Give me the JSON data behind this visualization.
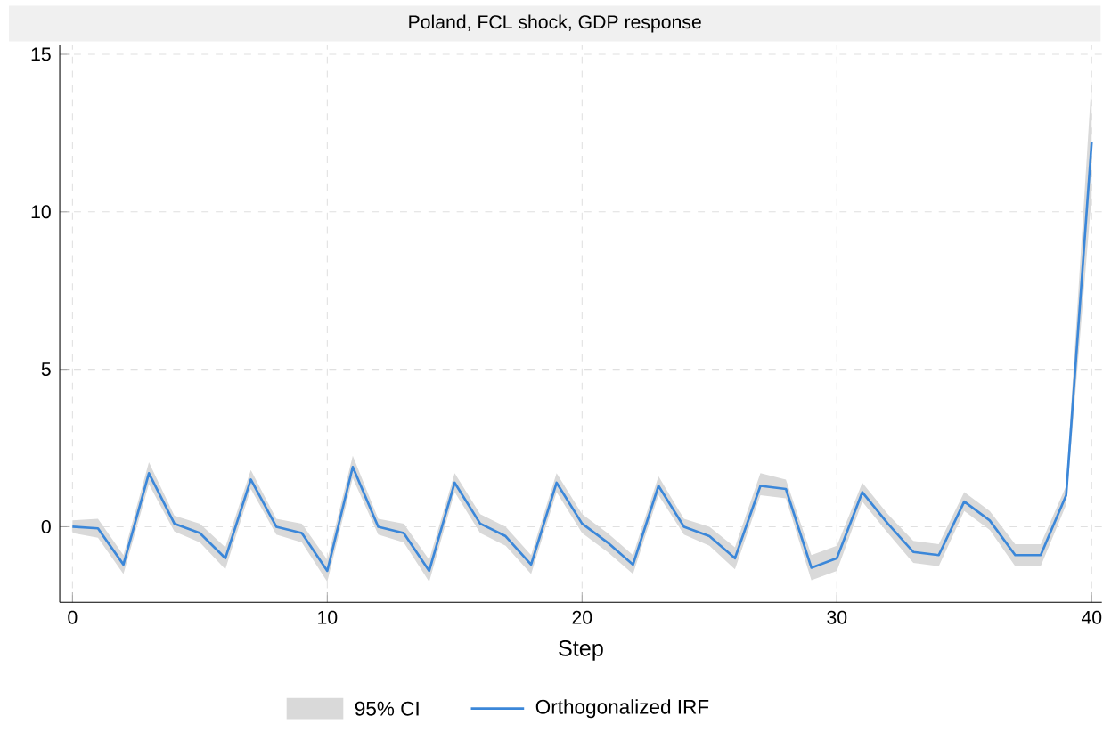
{
  "chart_data": {
    "type": "line",
    "title": "Poland, FCL shock, GDP response",
    "xlabel": "Step",
    "annotations": [
      "95% CI"
    ],
    "x": [
      0,
      1,
      2,
      3,
      4,
      5,
      6,
      7,
      8,
      9,
      10,
      11,
      12,
      13,
      14,
      15,
      16,
      17,
      18,
      19,
      20,
      21,
      22,
      23,
      24,
      25,
      26,
      27,
      28,
      29,
      30,
      31,
      32,
      33,
      34,
      35,
      36,
      37,
      38,
      39,
      40
    ],
    "series": [
      {
        "name": "Orthogonalized IRF",
        "color": "#3b87d9",
        "values": [
          0,
          -0.05,
          -1.2,
          1.7,
          0.1,
          -0.2,
          -1.0,
          1.5,
          0,
          -0.2,
          -1.4,
          1.9,
          0,
          -0.2,
          -1.4,
          1.4,
          0.1,
          -0.3,
          -1.2,
          1.4,
          0.1,
          -0.5,
          -1.2,
          1.3,
          0,
          -0.3,
          -1.0,
          1.3,
          1.2,
          -1.3,
          -1.0,
          1.1,
          0.1,
          -0.8,
          -0.9,
          0.8,
          0.2,
          -0.9,
          -0.9,
          1.0,
          12.2
        ],
        "lower": [
          -0.2,
          -0.35,
          -1.5,
          1.35,
          -0.15,
          -0.5,
          -1.35,
          1.2,
          -0.25,
          -0.5,
          -1.75,
          1.55,
          -0.25,
          -0.5,
          -1.75,
          1.1,
          -0.2,
          -0.6,
          -1.5,
          1.1,
          -0.2,
          -0.8,
          -1.5,
          1.0,
          -0.25,
          -0.6,
          -1.35,
          1.0,
          0.9,
          -1.7,
          -1.4,
          0.8,
          -0.2,
          -1.15,
          -1.25,
          0.5,
          -0.1,
          -1.25,
          -1.25,
          0.7,
          10.5
        ],
        "upper": [
          0.2,
          0.25,
          -0.9,
          2.05,
          0.35,
          0.1,
          -0.65,
          1.8,
          0.25,
          0.1,
          -1.05,
          2.25,
          0.25,
          0.1,
          -1.05,
          1.7,
          0.4,
          0.0,
          -0.9,
          1.7,
          0.4,
          -0.2,
          -0.9,
          1.6,
          0.25,
          0.0,
          -0.65,
          1.7,
          1.5,
          -0.9,
          -0.6,
          1.4,
          0.4,
          -0.45,
          -0.55,
          1.1,
          0.5,
          -0.55,
          -0.55,
          1.3,
          14.2
        ]
      }
    ],
    "xlim": [
      -0.5,
      40.4
    ],
    "ylim": [
      -2.4,
      15.3
    ],
    "xticks": [
      0,
      10,
      20,
      30,
      40
    ],
    "yticks": [
      0,
      5,
      10,
      15
    ],
    "grid": true,
    "legend": "bottom"
  }
}
